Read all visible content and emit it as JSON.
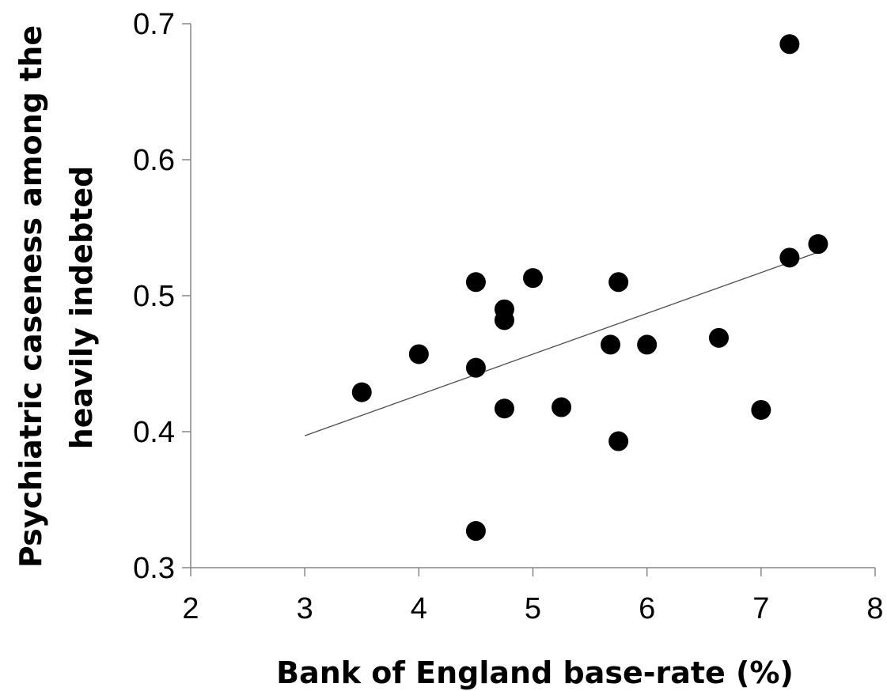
{
  "chart_data": {
    "type": "scatter",
    "title": "",
    "xlabel": "Bank of England base-rate (%)",
    "ylabel_lines": [
      "Psychiatric caseness among the",
      "heavily indebted"
    ],
    "xlim": [
      2,
      8
    ],
    "ylim": [
      0.3,
      0.7
    ],
    "xticks": [
      "2",
      "3",
      "4",
      "5",
      "6",
      "7",
      "8"
    ],
    "yticks": [
      "0.3",
      "0.4",
      "0.5",
      "0.6",
      "0.7"
    ],
    "points": [
      {
        "x": 3.5,
        "y": 0.429
      },
      {
        "x": 4.0,
        "y": 0.457
      },
      {
        "x": 4.5,
        "y": 0.51
      },
      {
        "x": 4.5,
        "y": 0.447
      },
      {
        "x": 4.5,
        "y": 0.327
      },
      {
        "x": 4.75,
        "y": 0.49
      },
      {
        "x": 4.75,
        "y": 0.482
      },
      {
        "x": 4.75,
        "y": 0.417
      },
      {
        "x": 5.0,
        "y": 0.513
      },
      {
        "x": 5.25,
        "y": 0.418
      },
      {
        "x": 5.68,
        "y": 0.464
      },
      {
        "x": 5.75,
        "y": 0.51
      },
      {
        "x": 5.75,
        "y": 0.393
      },
      {
        "x": 6.0,
        "y": 0.464
      },
      {
        "x": 6.63,
        "y": 0.469
      },
      {
        "x": 7.0,
        "y": 0.416
      },
      {
        "x": 7.25,
        "y": 0.528
      },
      {
        "x": 7.25,
        "y": 0.685
      },
      {
        "x": 7.5,
        "y": 0.538
      }
    ],
    "trendline": {
      "x": [
        3.0,
        7.5
      ],
      "y": [
        0.397,
        0.532
      ]
    },
    "grid": false,
    "legend": "none"
  }
}
